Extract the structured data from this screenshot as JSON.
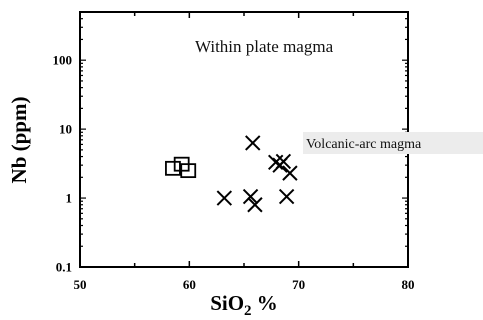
{
  "chart_data": {
    "type": "scatter",
    "xlabel": "SiO2 %",
    "ylabel": "Nb (ppm)",
    "xlim": [
      50,
      80
    ],
    "ylim": [
      0.1,
      500
    ],
    "yscale": "log",
    "grid": false,
    "x_ticks": [
      "50",
      "60",
      "70",
      "80"
    ],
    "y_ticks": [
      "0.1",
      "1",
      "10",
      "100"
    ],
    "annotations": [
      "Within plate magma",
      "Volcanic-arc magma"
    ],
    "series": [
      {
        "marker": "square",
        "color": "#000000",
        "points": [
          {
            "x": 58.5,
            "y": 2.7
          },
          {
            "x": 59.3,
            "y": 3.1
          },
          {
            "x": 59.9,
            "y": 2.5
          }
        ]
      },
      {
        "marker": "x",
        "color": "#000000",
        "points": [
          {
            "x": 63.2,
            "y": 1.0
          },
          {
            "x": 65.6,
            "y": 1.05
          },
          {
            "x": 65.8,
            "y": 6.3
          },
          {
            "x": 66.0,
            "y": 0.8
          },
          {
            "x": 67.9,
            "y": 3.3
          },
          {
            "x": 68.3,
            "y": 3.0
          },
          {
            "x": 68.6,
            "y": 3.4
          },
          {
            "x": 68.9,
            "y": 1.05
          },
          {
            "x": 69.2,
            "y": 2.3
          }
        ]
      }
    ]
  }
}
